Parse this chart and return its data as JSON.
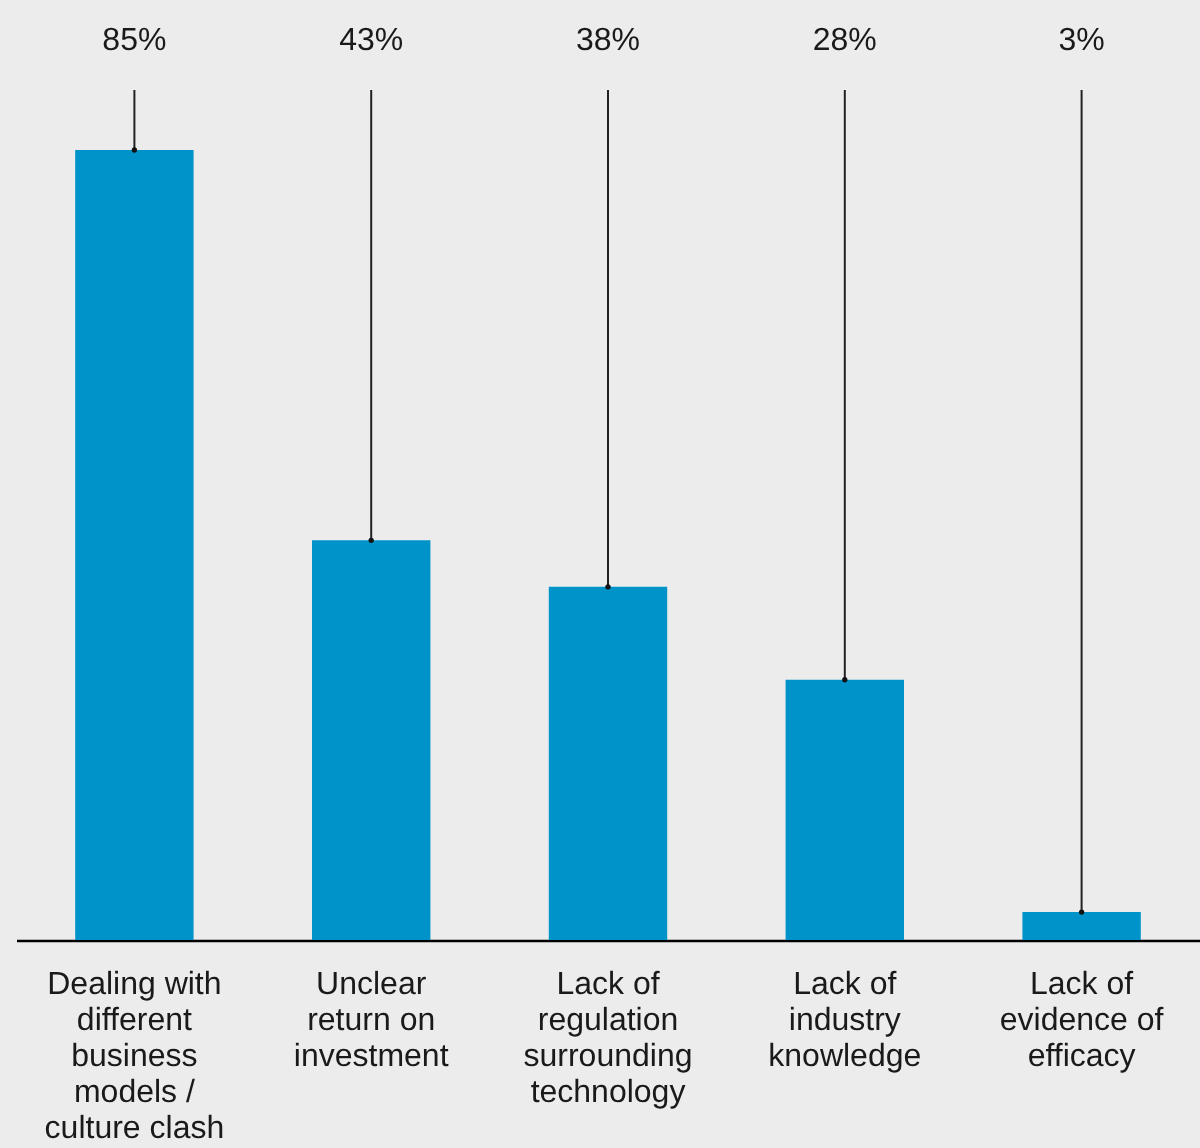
{
  "chart_data": {
    "type": "bar",
    "categories": [
      "Dealing with different business models / culture clash",
      "Unclear return on investment",
      "Lack of regulation surrounding technology",
      "Lack of industry knowledge",
      "Lack of evidence of efficacy"
    ],
    "values": [
      85,
      43,
      38,
      28,
      3
    ],
    "value_labels": [
      "85%",
      "43%",
      "38%",
      "28%",
      "3%"
    ],
    "color": "#0093c9"
  }
}
